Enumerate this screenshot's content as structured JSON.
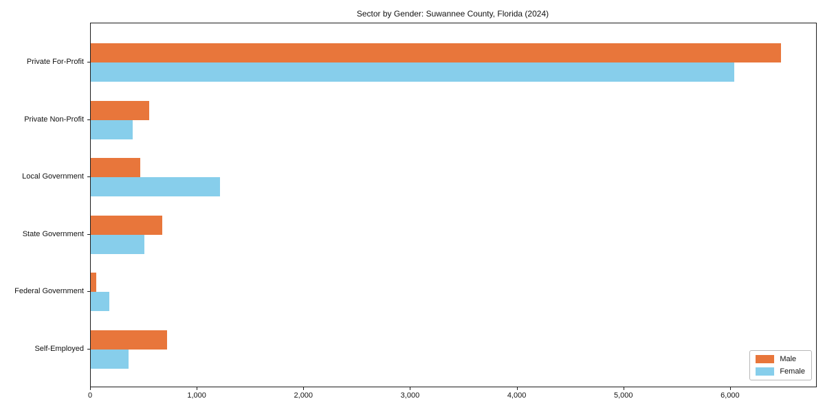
{
  "chart_data": {
    "type": "bar",
    "orientation": "horizontal",
    "title": "Sector by Gender: Suwannee County, Florida (2024)",
    "categories": [
      "Private For-Profit",
      "Private Non-Profit",
      "Local Government",
      "State Government",
      "Federal Government",
      "Self-Employed"
    ],
    "series": [
      {
        "name": "Male",
        "color": "#E8763B",
        "values": [
          6470,
          550,
          465,
          670,
          50,
          715
        ]
      },
      {
        "name": "Female",
        "color": "#87CEEB",
        "values": [
          6030,
          395,
          1210,
          505,
          175,
          355
        ]
      }
    ],
    "xlim": [
      0,
      6800
    ],
    "x_ticks": {
      "values": [
        0,
        1000,
        2000,
        3000,
        4000,
        5000,
        6000
      ],
      "labels": [
        "0",
        "1,000",
        "2,000",
        "3,000",
        "4,000",
        "5,000",
        "6,000"
      ]
    },
    "legend": {
      "position": "lower right",
      "entries": [
        "Male",
        "Female"
      ]
    },
    "grid": false,
    "background": "#ffffff"
  }
}
